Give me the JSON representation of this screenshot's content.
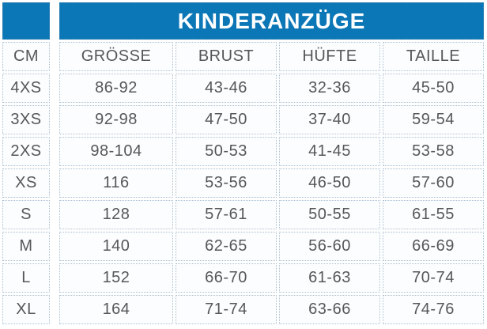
{
  "colors": {
    "header_blue": "#0c77b7",
    "text_gray": "#55575b",
    "dotted_border": "#a9bfd2",
    "title_text": "#ffffff"
  },
  "chart_data": {
    "type": "table",
    "title": "KINDERANZÜGE",
    "columns": [
      "CM",
      "GRÖSSE",
      "BRUST",
      "HÜFTE",
      "TAILLE"
    ],
    "rows": [
      [
        "4XS",
        "86-92",
        "43-46",
        "32-36",
        "45-50"
      ],
      [
        "3XS",
        "92-98",
        "47-50",
        "37-40",
        "59-54"
      ],
      [
        "2XS",
        "98-104",
        "50-53",
        "41-45",
        "53-58"
      ],
      [
        "XS",
        "116",
        "53-56",
        "46-50",
        "57-60"
      ],
      [
        "S",
        "128",
        "57-61",
        "50-55",
        "61-55"
      ],
      [
        "M",
        "140",
        "62-65",
        "56-60",
        "66-69"
      ],
      [
        "L",
        "152",
        "66-70",
        "61-63",
        "70-74"
      ],
      [
        "XL",
        "164",
        "71-74",
        "63-66",
        "74-76"
      ]
    ],
    "layout": {
      "legend": "none",
      "grid": "dotted-cell-borders",
      "header_style": "solid blue bar spanning measurement columns, separate blue box over size column"
    }
  }
}
